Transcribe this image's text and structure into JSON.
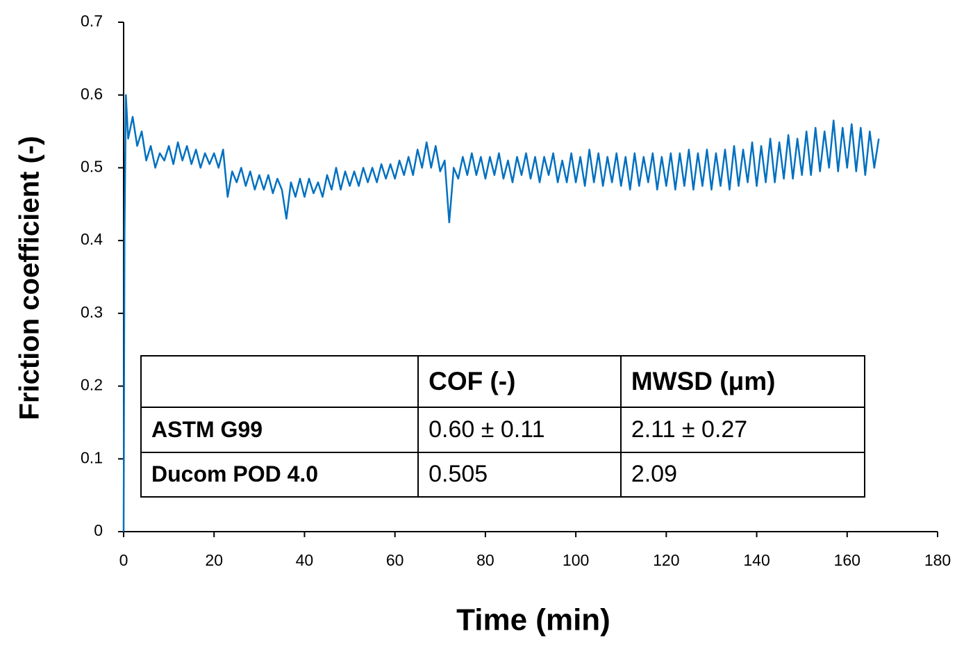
{
  "chart_data": {
    "type": "line",
    "x_label": "Time (min)",
    "y_label": "Friction coefficient (-)",
    "xlim": [
      0,
      180
    ],
    "xticks": [
      0,
      20,
      40,
      60,
      80,
      100,
      120,
      140,
      160,
      180
    ],
    "ylim": [
      0,
      0.7
    ],
    "yticks": [
      0,
      0.1,
      0.2,
      0.3,
      0.4,
      0.5,
      0.6,
      0.7
    ],
    "grid": false,
    "x": [
      0,
      0.2,
      0.5,
      1,
      2,
      3,
      4,
      5,
      6,
      7,
      8,
      9,
      10,
      11,
      12,
      13,
      14,
      15,
      16,
      17,
      18,
      19,
      20,
      21,
      22,
      23,
      24,
      25,
      26,
      27,
      28,
      29,
      30,
      31,
      32,
      33,
      34,
      35,
      36,
      37,
      38,
      39,
      40,
      41,
      42,
      43,
      44,
      45,
      46,
      47,
      48,
      49,
      50,
      51,
      52,
      53,
      54,
      55,
      56,
      57,
      58,
      59,
      60,
      61,
      62,
      63,
      64,
      65,
      66,
      67,
      68,
      69,
      70,
      71,
      72,
      73,
      74,
      75,
      76,
      77,
      78,
      79,
      80,
      81,
      82,
      83,
      84,
      85,
      86,
      87,
      88,
      89,
      90,
      91,
      92,
      93,
      94,
      95,
      96,
      97,
      98,
      99,
      100,
      101,
      102,
      103,
      104,
      105,
      106,
      107,
      108,
      109,
      110,
      111,
      112,
      113,
      114,
      115,
      116,
      117,
      118,
      119,
      120,
      121,
      122,
      123,
      124,
      125,
      126,
      127,
      128,
      129,
      130,
      131,
      132,
      133,
      134,
      135,
      136,
      137,
      138,
      139,
      140,
      141,
      142,
      143,
      144,
      145,
      146,
      147,
      148,
      149,
      150,
      151,
      152,
      153,
      154,
      155,
      156,
      157,
      158,
      159,
      160,
      161,
      162,
      163,
      164,
      165,
      166,
      167
    ],
    "series": [
      {
        "name": "COF",
        "color": "#0070c0",
        "values": [
          0,
          0.41,
          0.6,
          0.54,
          0.57,
          0.53,
          0.55,
          0.51,
          0.53,
          0.5,
          0.52,
          0.51,
          0.53,
          0.505,
          0.535,
          0.51,
          0.53,
          0.505,
          0.525,
          0.5,
          0.52,
          0.505,
          0.52,
          0.5,
          0.525,
          0.46,
          0.495,
          0.48,
          0.5,
          0.475,
          0.495,
          0.47,
          0.49,
          0.47,
          0.49,
          0.465,
          0.485,
          0.47,
          0.43,
          0.48,
          0.46,
          0.485,
          0.46,
          0.485,
          0.465,
          0.48,
          0.46,
          0.49,
          0.47,
          0.5,
          0.47,
          0.495,
          0.475,
          0.495,
          0.475,
          0.5,
          0.48,
          0.5,
          0.48,
          0.505,
          0.485,
          0.505,
          0.485,
          0.51,
          0.49,
          0.515,
          0.49,
          0.525,
          0.5,
          0.535,
          0.5,
          0.53,
          0.495,
          0.51,
          0.425,
          0.5,
          0.485,
          0.515,
          0.49,
          0.52,
          0.49,
          0.515,
          0.485,
          0.515,
          0.49,
          0.52,
          0.485,
          0.51,
          0.48,
          0.515,
          0.49,
          0.52,
          0.485,
          0.515,
          0.48,
          0.515,
          0.49,
          0.52,
          0.48,
          0.51,
          0.48,
          0.52,
          0.48,
          0.515,
          0.475,
          0.525,
          0.48,
          0.52,
          0.475,
          0.515,
          0.48,
          0.52,
          0.475,
          0.515,
          0.47,
          0.52,
          0.475,
          0.515,
          0.48,
          0.52,
          0.47,
          0.515,
          0.475,
          0.52,
          0.47,
          0.52,
          0.475,
          0.525,
          0.47,
          0.52,
          0.475,
          0.525,
          0.47,
          0.52,
          0.475,
          0.525,
          0.47,
          0.53,
          0.475,
          0.525,
          0.48,
          0.535,
          0.475,
          0.53,
          0.48,
          0.54,
          0.48,
          0.535,
          0.485,
          0.545,
          0.485,
          0.54,
          0.49,
          0.55,
          0.49,
          0.555,
          0.495,
          0.55,
          0.5,
          0.565,
          0.495,
          0.555,
          0.5,
          0.56,
          0.495,
          0.555,
          0.49,
          0.55,
          0.5,
          0.54
        ]
      }
    ]
  },
  "table": {
    "header": [
      "COF (-)",
      "MWSD (μm)"
    ],
    "rows": [
      [
        "ASTM G99",
        "0.60 ± 0.11",
        "2.11 ± 0.27"
      ],
      [
        "Ducom POD 4.0",
        "0.505",
        "2.09"
      ]
    ]
  }
}
